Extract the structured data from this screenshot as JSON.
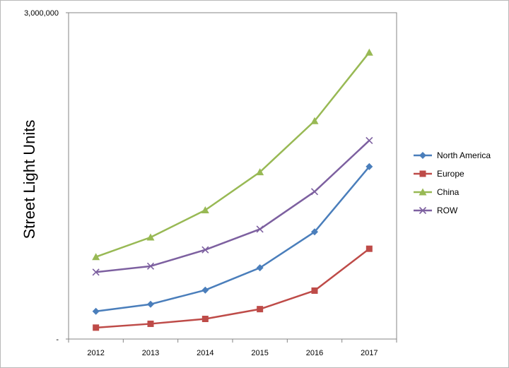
{
  "chart_data": {
    "type": "line",
    "title": "",
    "xlabel": "",
    "ylabel": "Street Light Units",
    "categories": [
      "2012",
      "2013",
      "2014",
      "2015",
      "2016",
      "2017"
    ],
    "ylim": [
      0,
      3000000
    ],
    "y_ticks": [
      {
        "value": 0,
        "label": "-"
      },
      {
        "value": 3000000,
        "label": "3,000,000"
      }
    ],
    "grid": false,
    "legend_position": "right",
    "series": [
      {
        "name": "North America",
        "color": "#4a7ebb",
        "marker": "diamond",
        "values": [
          255000,
          320000,
          450000,
          655000,
          985000,
          1585000
        ]
      },
      {
        "name": "Europe",
        "color": "#be4b48",
        "marker": "square",
        "values": [
          105000,
          140000,
          185000,
          275000,
          445000,
          830000
        ]
      },
      {
        "name": "China",
        "color": "#98b954",
        "marker": "triangle",
        "values": [
          755000,
          935000,
          1185000,
          1535000,
          2005000,
          2635000
        ]
      },
      {
        "name": "ROW",
        "color": "#7d60a0",
        "marker": "x",
        "values": [
          615000,
          670000,
          820000,
          1010000,
          1355000,
          1825000
        ]
      }
    ]
  }
}
